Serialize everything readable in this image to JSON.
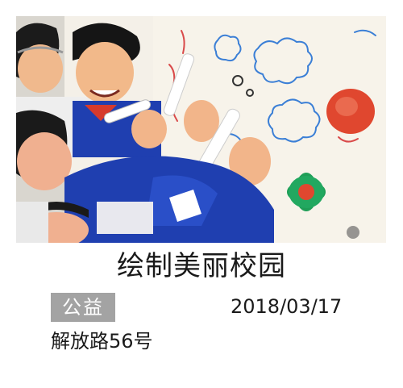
{
  "card": {
    "title": "绘制美丽校园",
    "category_badge": "公益",
    "date": "2018/03/17",
    "address": "解放路56号"
  },
  "photo": {
    "icon": "children-drawing-photo"
  },
  "colors": {
    "badge_background": "#a3a3a3",
    "badge_text": "#ffffff",
    "text": "#1a1a1a",
    "uniform_blue": "#1f3fb0",
    "paper": "#f3efe6"
  }
}
